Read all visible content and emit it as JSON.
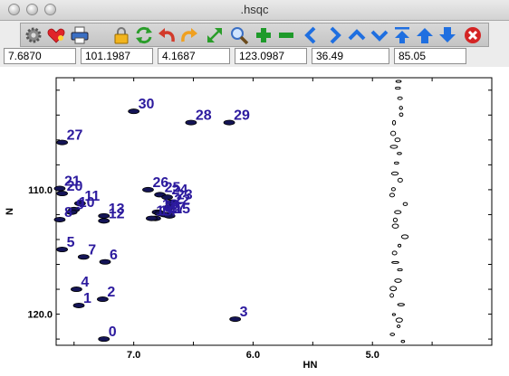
{
  "window": {
    "title": ".hsqc"
  },
  "toolbar": {
    "icons": [
      "gear-icon",
      "heart-icon",
      "printer-icon",
      "lock-icon",
      "refresh-icon",
      "undo-icon",
      "redo-icon",
      "expand-icon",
      "zoom-icon",
      "plus-icon",
      "minus-icon",
      "arrow-left-icon",
      "arrow-right-icon",
      "arrow-up-icon",
      "arrow-down-icon",
      "arrow-top-icon",
      "arrow-up-circle-icon",
      "arrow-down-circle-icon",
      "close-icon"
    ]
  },
  "fields": [
    "7.6870",
    "101.1987",
    "4.1687",
    "123.0987",
    "36.49",
    "85.05"
  ],
  "chart_data": {
    "type": "scatter",
    "xlabel": "HN",
    "ylabel": "N",
    "x_ticks": [
      "7.0",
      "6.0",
      "5.0"
    ],
    "y_ticks": [
      "110.0",
      "120.0"
    ],
    "xlim": [
      7.65,
      4.0
    ],
    "ylim": [
      122.5,
      101.0
    ],
    "peak_color": "#2c1a9e",
    "peaks": [
      {
        "label": "30",
        "hn": 7.0,
        "n": 103.7
      },
      {
        "label": "28",
        "hn": 6.52,
        "n": 104.6
      },
      {
        "label": "29",
        "hn": 6.2,
        "n": 104.6
      },
      {
        "label": "27",
        "hn": 7.6,
        "n": 106.2
      },
      {
        "label": "21",
        "hn": 7.62,
        "n": 109.9
      },
      {
        "label": "20",
        "hn": 7.6,
        "n": 110.3
      },
      {
        "label": "11",
        "hn": 7.45,
        "n": 111.1
      },
      {
        "label": "10",
        "hn": 7.5,
        "n": 111.6
      },
      {
        "label": "9",
        "hn": 7.52,
        "n": 111.8
      },
      {
        "label": "8",
        "hn": 7.62,
        "n": 112.4
      },
      {
        "label": "13",
        "hn": 7.25,
        "n": 112.1
      },
      {
        "label": "12",
        "hn": 7.25,
        "n": 112.5
      },
      {
        "label": "26",
        "hn": 6.88,
        "n": 110.0
      },
      {
        "label": "25",
        "hn": 6.78,
        "n": 110.4
      },
      {
        "label": "24",
        "hn": 6.72,
        "n": 110.6
      },
      {
        "label": "23",
        "hn": 6.68,
        "n": 111.0
      },
      {
        "label": "22",
        "hn": 6.7,
        "n": 111.4
      },
      {
        "label": "18",
        "hn": 6.8,
        "n": 111.8
      },
      {
        "label": "17",
        "hn": 6.74,
        "n": 112.0
      },
      {
        "label": "16",
        "hn": 6.78,
        "n": 111.9
      },
      {
        "label": "15",
        "hn": 6.7,
        "n": 112.1
      },
      {
        "label": "14",
        "hn": 6.82,
        "n": 112.3
      },
      {
        "label": "19",
        "hn": 6.85,
        "n": 112.3
      },
      {
        "label": "5",
        "hn": 7.6,
        "n": 114.8
      },
      {
        "label": "7",
        "hn": 7.42,
        "n": 115.4
      },
      {
        "label": "6",
        "hn": 7.24,
        "n": 115.8
      },
      {
        "label": "4",
        "hn": 7.48,
        "n": 118.0
      },
      {
        "label": "1",
        "hn": 7.46,
        "n": 119.3
      },
      {
        "label": "2",
        "hn": 7.26,
        "n": 118.8
      },
      {
        "label": "3",
        "hn": 6.15,
        "n": 120.4
      },
      {
        "label": "0",
        "hn": 7.25,
        "n": 122.0
      }
    ]
  }
}
